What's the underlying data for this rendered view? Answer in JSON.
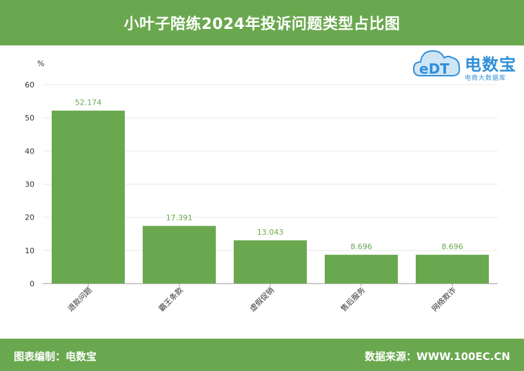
{
  "header": {
    "title": "小叶子陪练2024年投诉问题类型占比图"
  },
  "logo": {
    "name": "电数宝",
    "subtitle": "电商大数据库",
    "icon_text": "eDT",
    "color": "#2f8fd8"
  },
  "footer": {
    "left": "图表编制：电数宝",
    "right": "数据来源：WWW.100EC.CN"
  },
  "colors": {
    "accent": "#6aa84f",
    "bar": "#6aa84f",
    "label": "#6aa84f",
    "axis_text": "#333333"
  },
  "chart_data": {
    "type": "bar",
    "title": "小叶子陪练2024年投诉问题类型占比图",
    "ylabel": "%",
    "xlabel": "",
    "categories": [
      "退款问题",
      "霸王条款",
      "虚假促销",
      "售后服务",
      "网络欺诈"
    ],
    "values": [
      52.174,
      17.391,
      13.043,
      8.696,
      8.696
    ],
    "value_labels": [
      "52.174",
      "17.391",
      "13.043",
      "8.696",
      "8.696"
    ],
    "ylim": [
      0,
      60
    ],
    "yticks": [
      "0",
      "10",
      "20",
      "30",
      "40",
      "50",
      "60"
    ],
    "grid": true
  }
}
